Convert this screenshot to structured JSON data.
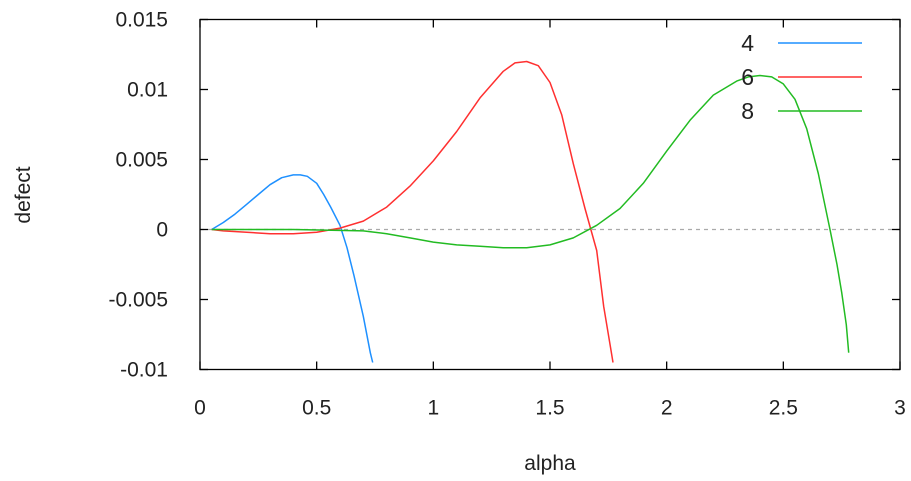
{
  "chart_data": {
    "type": "line",
    "title": "",
    "xlabel": "alpha",
    "ylabel": "defect",
    "xlim": [
      0,
      3
    ],
    "ylim": [
      -0.01,
      0.015
    ],
    "xticks": [
      0,
      0.5,
      1,
      1.5,
      2,
      2.5,
      3
    ],
    "xtick_labels": [
      "0",
      "0.5",
      "1",
      "1.5",
      "2",
      "2.5",
      "3"
    ],
    "yticks": [
      -0.01,
      -0.005,
      0,
      0.005,
      0.01,
      0.015
    ],
    "ytick_labels": [
      "-0.01",
      "-0.005",
      "0",
      "0.005",
      "0.01",
      "0.015"
    ],
    "grid": false,
    "zero_line": true,
    "legend_position": "top-right",
    "series": [
      {
        "name": "4",
        "color": "#1e90ff",
        "x": [
          0.05,
          0.1,
          0.15,
          0.2,
          0.25,
          0.3,
          0.35,
          0.4,
          0.43,
          0.46,
          0.5,
          0.53,
          0.56,
          0.6,
          0.63,
          0.66,
          0.7,
          0.73,
          0.74
        ],
        "y": [
          0.0,
          0.0005,
          0.0011,
          0.0018,
          0.0025,
          0.0032,
          0.0037,
          0.0039,
          0.0039,
          0.0038,
          0.0033,
          0.0025,
          0.0016,
          0.0003,
          -0.0013,
          -0.0033,
          -0.0062,
          -0.0088,
          -0.0095
        ]
      },
      {
        "name": "6",
        "color": "#ff3030",
        "x": [
          0.05,
          0.1,
          0.2,
          0.3,
          0.4,
          0.5,
          0.6,
          0.7,
          0.8,
          0.9,
          1.0,
          1.1,
          1.2,
          1.3,
          1.35,
          1.4,
          1.45,
          1.5,
          1.55,
          1.6,
          1.65,
          1.7,
          1.73,
          1.76,
          1.77
        ],
        "y": [
          0.0,
          -0.0001,
          -0.0002,
          -0.0003,
          -0.0003,
          -0.0002,
          0.0001,
          0.0006,
          0.0016,
          0.0031,
          0.0049,
          0.007,
          0.0094,
          0.0113,
          0.0119,
          0.012,
          0.0117,
          0.0105,
          0.0082,
          0.0047,
          0.0015,
          -0.0015,
          -0.0055,
          -0.0085,
          -0.0095
        ]
      },
      {
        "name": "8",
        "color": "#22bb22",
        "x": [
          0.05,
          0.4,
          0.7,
          0.8,
          0.9,
          1.0,
          1.1,
          1.2,
          1.3,
          1.4,
          1.5,
          1.6,
          1.7,
          1.8,
          1.9,
          2.0,
          2.1,
          2.2,
          2.3,
          2.35,
          2.4,
          2.45,
          2.5,
          2.55,
          2.6,
          2.65,
          2.7,
          2.73,
          2.75,
          2.77,
          2.78
        ],
        "y": [
          0.0,
          0.0,
          -0.0001,
          -0.0003,
          -0.0006,
          -0.0009,
          -0.0011,
          -0.0012,
          -0.0013,
          -0.0013,
          -0.0011,
          -0.0006,
          0.0003,
          0.0015,
          0.0033,
          0.0056,
          0.0078,
          0.0096,
          0.0106,
          0.0109,
          0.011,
          0.0109,
          0.0104,
          0.0093,
          0.0072,
          0.004,
          0.0,
          -0.0025,
          -0.0045,
          -0.0068,
          -0.0088
        ]
      }
    ]
  }
}
